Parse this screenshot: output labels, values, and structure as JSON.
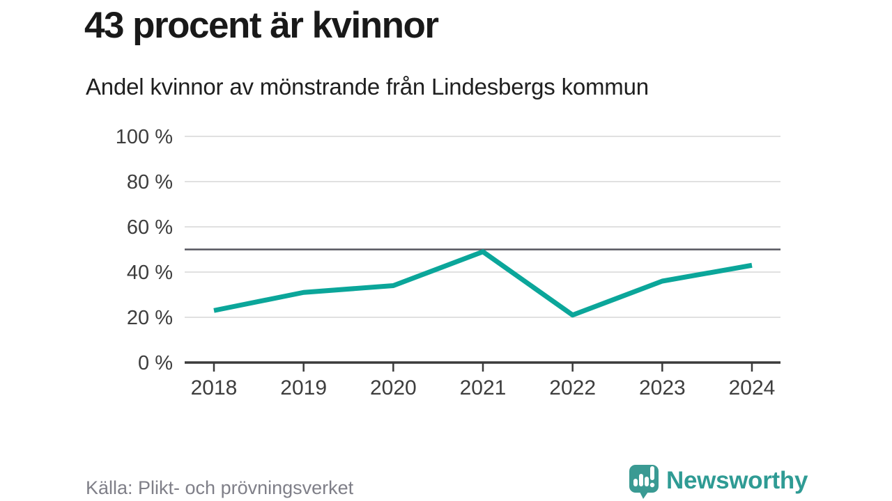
{
  "header": {
    "title": "43 procent är kvinnor",
    "subtitle": "Andel kvinnor av mönstrande från Lindesbergs kommun"
  },
  "chart_data": {
    "type": "line",
    "title": "Andel kvinnor av mönstrande från Lindesbergs kommun",
    "x": [
      "2018",
      "2019",
      "2020",
      "2021",
      "2022",
      "2023",
      "2024"
    ],
    "series": [
      {
        "name": "Andel kvinnor",
        "values": [
          23,
          31,
          34,
          49,
          21,
          36,
          43
        ]
      }
    ],
    "ylim": [
      0,
      100
    ],
    "y_ticks": [
      0,
      20,
      40,
      60,
      80,
      100
    ],
    "y_tick_suffix": " %",
    "reference_line": {
      "value": 50
    },
    "grid": "horizontal",
    "legend": "none",
    "line_color": "#0ba69a",
    "grid_color": "#e0e0e0",
    "axis_color": "#3a3a3a",
    "reference_line_color": "#55555e",
    "label_color": "#3d3d3d"
  },
  "footer": {
    "source": "Källa: Plikt- och prövningsverket",
    "brand": "Newsworthy",
    "brand_color": "#2f9b94",
    "logo_bubble_color": "#3a9a93"
  }
}
